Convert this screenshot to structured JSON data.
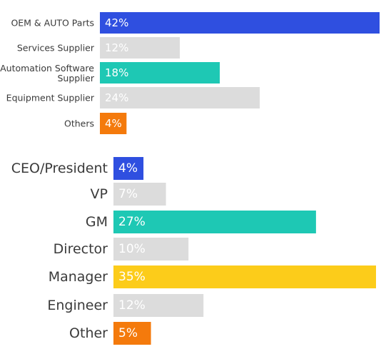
{
  "chart_data": [
    {
      "type": "bar",
      "orientation": "horizontal",
      "categories": [
        "OEM & AUTO Parts",
        "Services Supplier",
        "Automation Software Supplier",
        "Equipment Supplier",
        "Others"
      ],
      "values": [
        42,
        12,
        18,
        24,
        4
      ],
      "value_labels": [
        "42%",
        "12%",
        "18%",
        "24%",
        "4%"
      ],
      "colors": [
        "#2f4fe0",
        "#dcdcdc",
        "#1ec8b4",
        "#dcdcdc",
        "#f47a0c"
      ],
      "unit": "%"
    },
    {
      "type": "bar",
      "orientation": "horizontal",
      "categories": [
        "CEO/President",
        "VP",
        "GM",
        "Director",
        "Manager",
        "Engineer",
        "Other"
      ],
      "values": [
        4,
        7,
        27,
        10,
        35,
        12,
        5
      ],
      "value_labels": [
        "4%",
        "7%",
        "27%",
        "10%",
        "35%",
        "12%",
        "5%"
      ],
      "colors": [
        "#2f4fe0",
        "#dcdcdc",
        "#1ec8b4",
        "#dcdcdc",
        "#fccc1a",
        "#dcdcdc",
        "#f47a0c"
      ],
      "unit": "%"
    }
  ]
}
